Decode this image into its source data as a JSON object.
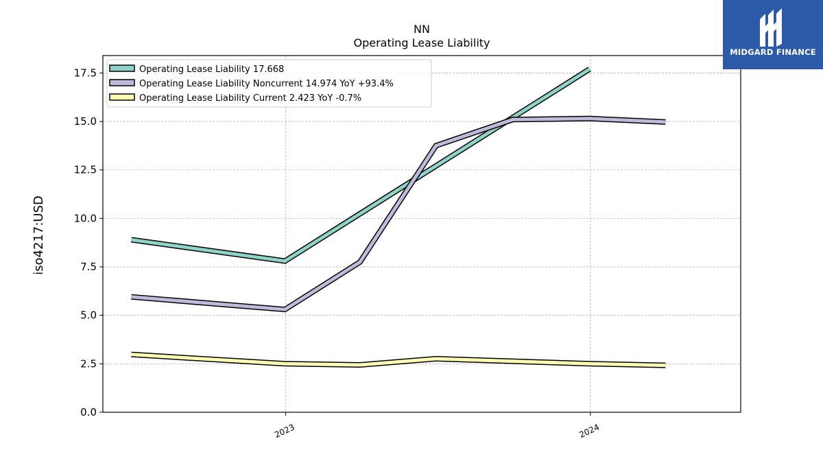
{
  "brand": {
    "name": "MIDGARD FINANCE",
    "background": "#2c5aa8",
    "icon": "midgard-finance-logo-icon"
  },
  "chart_data": {
    "type": "line",
    "title": "NN",
    "subtitle": "Operating Lease Liability",
    "ylabel": "iso4217:USD",
    "xlabel": "",
    "ylim": [
      0,
      18.4
    ],
    "yticks": [
      0.0,
      2.5,
      5.0,
      7.5,
      10.0,
      12.5,
      15.0,
      17.5
    ],
    "ytick_labels": [
      "0.0",
      "2.5",
      "5.0",
      "7.5",
      "10.0",
      "12.5",
      "15.0",
      "17.5"
    ],
    "xlim": [
      "2022-05-27",
      "2024-06-29"
    ],
    "xticks": [
      "2023-01-01",
      "2024-01-01"
    ],
    "xtick_labels": [
      "2023",
      "2024"
    ],
    "x": [
      "2022-06-30",
      "2022-12-31",
      "2023-03-31",
      "2023-06-30",
      "2023-09-30",
      "2023-12-31",
      "2024-03-31"
    ],
    "grid": true,
    "legend_position": "top-left",
    "series": [
      {
        "name": "Operating Lease Liability",
        "legend_label": "Operating Lease Liability  17.668",
        "color": "#8dd3c7",
        "values": [
          8.9,
          7.8,
          null,
          null,
          null,
          17.7,
          null
        ]
      },
      {
        "name": "Operating Lease Liability Noncurrent",
        "legend_label": "Operating Lease Liability Noncurrent  14.974 YoY +93.4%",
        "color": "#bebada",
        "values": [
          5.95,
          5.3,
          7.75,
          13.75,
          15.1,
          15.15,
          14.97
        ]
      },
      {
        "name": "Operating Lease Liability Current",
        "legend_label": "Operating Lease Liability Current  2.423 YoY -0.7%",
        "color": "#ffffb3",
        "values": [
          2.98,
          2.5,
          2.44,
          2.76,
          null,
          2.5,
          2.42
        ]
      }
    ]
  }
}
